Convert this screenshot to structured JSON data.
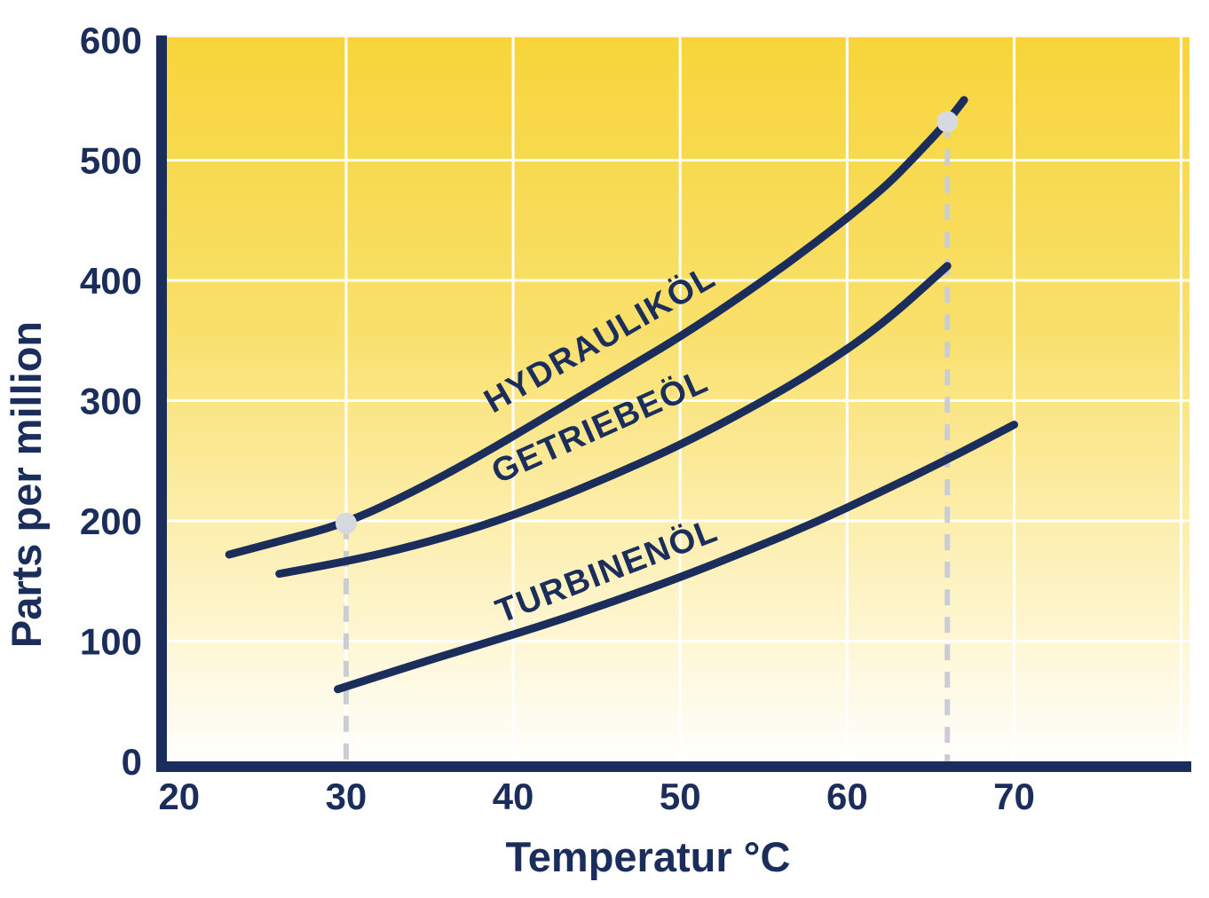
{
  "chart": {
    "xlabel": "Temperatur °C",
    "ylabel": "Parts per million"
  },
  "chart_data": {
    "type": "line",
    "title": "",
    "xlabel": "Temperatur °C",
    "ylabel": "Parts per million",
    "xlim": [
      19,
      80.5
    ],
    "ylim": [
      0,
      600
    ],
    "xticks": [
      20,
      30,
      40,
      50,
      60,
      70
    ],
    "yticks": [
      0,
      100,
      200,
      300,
      400,
      500,
      600
    ],
    "xgrid": [
      30,
      40,
      50,
      60,
      70,
      80
    ],
    "ygrid": [
      100,
      200,
      300,
      400,
      500
    ],
    "grid": true,
    "legend_position": "labels-on-curves",
    "series": [
      {
        "name": "HYDRAULIKÖL",
        "points": [
          [
            23,
            172
          ],
          [
            26,
            183
          ],
          [
            30,
            198
          ],
          [
            34,
            224
          ],
          [
            38,
            254
          ],
          [
            42,
            287
          ],
          [
            46,
            320
          ],
          [
            50,
            353
          ],
          [
            54,
            390
          ],
          [
            58,
            430
          ],
          [
            62,
            474
          ],
          [
            64,
            502
          ],
          [
            66,
            532
          ],
          [
            67,
            550
          ]
        ]
      },
      {
        "name": "GETRIEBEÖL",
        "points": [
          [
            26,
            156
          ],
          [
            30,
            166
          ],
          [
            34,
            179
          ],
          [
            38,
            195
          ],
          [
            42,
            215
          ],
          [
            46,
            238
          ],
          [
            50,
            263
          ],
          [
            54,
            292
          ],
          [
            58,
            324
          ],
          [
            62,
            362
          ],
          [
            66,
            412
          ]
        ]
      },
      {
        "name": "TURBINENÖL",
        "points": [
          [
            29.5,
            60
          ],
          [
            34,
            80
          ],
          [
            38,
            97
          ],
          [
            42,
            114
          ],
          [
            46,
            133
          ],
          [
            50,
            153
          ],
          [
            54,
            175
          ],
          [
            58,
            198
          ],
          [
            62,
            224
          ],
          [
            66,
            251
          ],
          [
            70,
            280
          ]
        ]
      }
    ],
    "annotations": {
      "dashed_guides": [
        {
          "x": 30,
          "y_top": 198
        },
        {
          "x": 66,
          "y_top": 532
        }
      ],
      "marker_dots": [
        {
          "x": 30,
          "y": 198
        },
        {
          "x": 66,
          "y": 532
        }
      ]
    }
  },
  "colors": {
    "navy": "#1B2D5B",
    "grid": "#FFFFFF",
    "dashed": "#CACDD6",
    "dot": "#D6D9E0",
    "bg_stop_0": "#F7D53A",
    "bg_stop_1": "#F9E06B",
    "bg_stop_2": "#FDF3C4",
    "bg_stop_3": "#FFFFFF"
  }
}
